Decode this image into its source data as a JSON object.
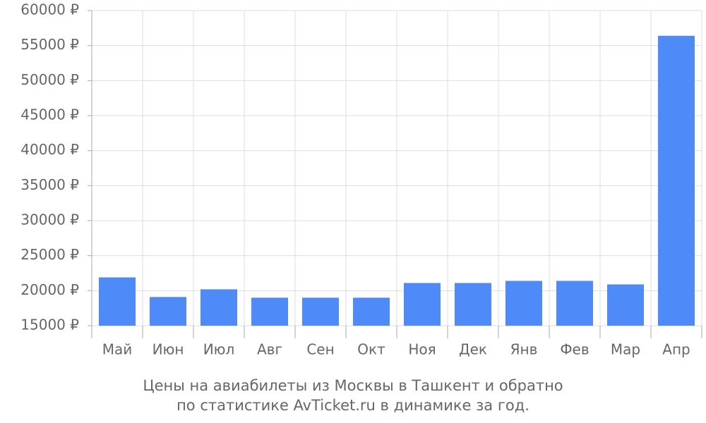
{
  "chart_data": {
    "type": "bar",
    "title": "Цены на авиабилеты из Москвы в Ташкент и обратно",
    "subtitle": "по статистике AvTicket.ru в динамике за год.",
    "categories": [
      "Май",
      "Июн",
      "Июл",
      "Авг",
      "Сен",
      "Окт",
      "Ноя",
      "Дек",
      "Янв",
      "Фев",
      "Мар",
      "Апр"
    ],
    "values": [
      21900,
      19100,
      20200,
      19000,
      19000,
      19000,
      21100,
      21100,
      21400,
      21400,
      20900,
      56400
    ],
    "color": "#4e8bf9",
    "ylim": [
      15000,
      60000
    ],
    "yticks": [
      {
        "value": 15000,
        "label": "15000 ₽"
      },
      {
        "value": 20000,
        "label": "20000 ₽"
      },
      {
        "value": 25000,
        "label": "25000 ₽"
      },
      {
        "value": 30000,
        "label": "30000 ₽"
      },
      {
        "value": 35000,
        "label": "35000 ₽"
      },
      {
        "value": 40000,
        "label": "40000 ₽"
      },
      {
        "value": 45000,
        "label": "45000 ₽"
      },
      {
        "value": 50000,
        "label": "50000 ₽"
      },
      {
        "value": 55000,
        "label": "55000 ₽"
      },
      {
        "value": 60000,
        "label": "60000 ₽"
      }
    ],
    "grid": true
  }
}
